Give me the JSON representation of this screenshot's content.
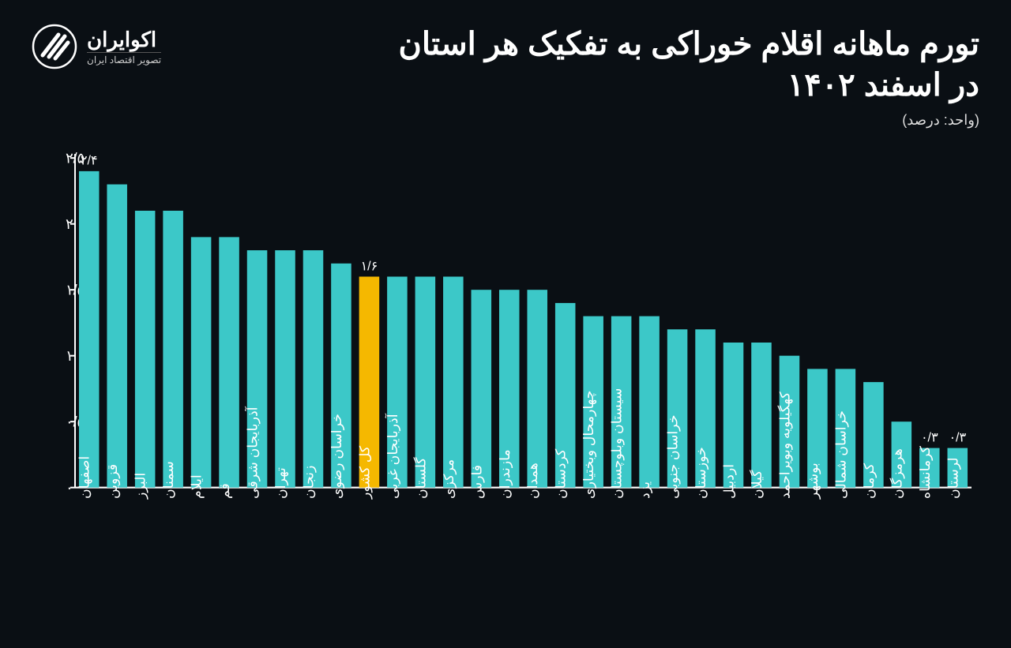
{
  "logo": {
    "title": "اکوایران",
    "subtitle": "تصویر اقتصاد ایران"
  },
  "chart": {
    "type": "bar",
    "title_line1": "تورم ماهانه اقلام خوراکی به تفکیک هر استان",
    "title_line2": "در اسفند ۱۴۰۲",
    "unit": "(واحد: درصد)",
    "background_color": "#0a0f14",
    "bar_color": "#3cc8c8",
    "highlight_color": "#f5b800",
    "axis_color": "#ffffff",
    "text_color": "#ffffff",
    "ylim": [
      0,
      2.5
    ],
    "ytick_step": 0.5,
    "ytick_labels": [
      "۰",
      "۰/۵",
      "۱",
      "۱/۵",
      "۲",
      "۲/۵"
    ],
    "bar_width_ratio": 0.72,
    "categories": [
      "اصفهان",
      "قزوین",
      "البرز",
      "سمنان",
      "ایلام",
      "قم",
      "آذربایجان شرقی",
      "تهران",
      "زنجان",
      "خراسان رضوی",
      "کل کشور",
      "آذربایجان غربی",
      "گلستان",
      "مرکزی",
      "فارس",
      "مازندران",
      "همدان",
      "کردستان",
      "چهارمحال وبختیاری",
      "سیستان وبلوچستان",
      "یزد",
      "خراسان جنوبی",
      "خوزستان",
      "اردبیل",
      "گیلان",
      "کهگیلویه وبویراحمد",
      "بوشهر",
      "خراسان شمالی",
      "کرمان",
      "هرمزگان",
      "کرمانشاه",
      "لرستان"
    ],
    "values": [
      2.4,
      2.3,
      2.1,
      2.1,
      1.9,
      1.9,
      1.8,
      1.8,
      1.8,
      1.7,
      1.6,
      1.6,
      1.6,
      1.6,
      1.5,
      1.5,
      1.5,
      1.4,
      1.3,
      1.3,
      1.3,
      1.2,
      1.2,
      1.1,
      1.1,
      1.0,
      0.9,
      0.9,
      0.8,
      0.5,
      0.3,
      0.3
    ],
    "highlight_index": 10,
    "value_labels": [
      {
        "index": 0,
        "text": "۲/۴"
      },
      {
        "index": 10,
        "text": "۱/۶"
      },
      {
        "index": 30,
        "text": "۰/۳"
      },
      {
        "index": 31,
        "text": "۰/۳"
      }
    ]
  }
}
